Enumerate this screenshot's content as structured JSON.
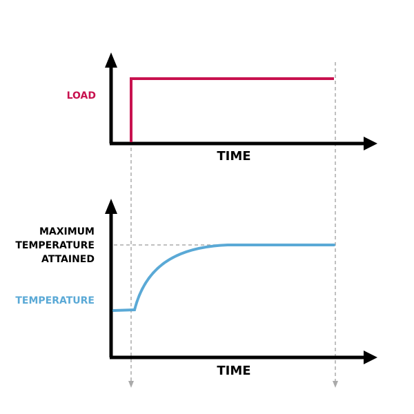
{
  "labels": {
    "load": "LOAD",
    "time_top": "TIME",
    "time_bottom": "TIME",
    "max_line1": "MAXIMUM",
    "max_line2": "TEMPERATURE",
    "max_line3": "ATTAINED",
    "temperature": "TEMPERATURE"
  },
  "colors": {
    "load": "#c8124f",
    "temperature": "#5aa9d6",
    "axis": "#000000",
    "guide": "#aaaaaa",
    "text": "#000000"
  }
}
